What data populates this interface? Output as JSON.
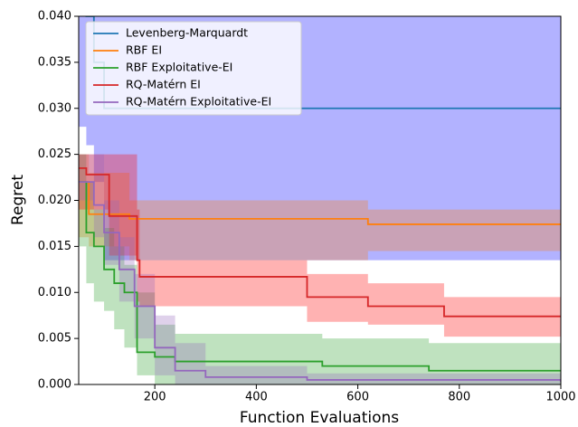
{
  "chart_data": {
    "type": "line",
    "drawstyle": "steps-post",
    "xlabel": "Function Evaluations",
    "ylabel": "Regret",
    "xlim": [
      50,
      1000
    ],
    "ylim": [
      0,
      0.04
    ],
    "xticks": [
      200,
      400,
      600,
      800,
      1000
    ],
    "yticks": [
      {
        "value": 0,
        "label": "0.000"
      },
      {
        "value": 0.005,
        "label": "0.005"
      },
      {
        "value": 0.01,
        "label": "0.010"
      },
      {
        "value": 0.015,
        "label": "0.015"
      },
      {
        "value": 0.02,
        "label": "0.020"
      },
      {
        "value": 0.025,
        "label": "0.025"
      },
      {
        "value": 0.03,
        "label": "0.030"
      },
      {
        "value": 0.035,
        "label": "0.035"
      },
      {
        "value": 0.04,
        "label": "0.040"
      }
    ],
    "legend": "upper left",
    "series": [
      {
        "name": "Levenberg-Marquardt",
        "color": "#1f77b4",
        "band_color": "#0000ff",
        "x": [
          50,
          65,
          80,
          100,
          1000
        ],
        "values": [
          0.045,
          0.04,
          0.035,
          0.03,
          0.03
        ],
        "lower": [
          0.028,
          0.026,
          0.022,
          0.0135,
          0.0135
        ],
        "upper": [
          0.06,
          0.06,
          0.06,
          0.06,
          0.06
        ]
      },
      {
        "name": "RBF EI",
        "color": "#ff7f0e",
        "band_color": "#ff7f0e",
        "x": [
          50,
          70,
          150,
          620,
          1000
        ],
        "values": [
          0.022,
          0.0185,
          0.018,
          0.0174,
          0.0174
        ],
        "lower": [
          0.016,
          0.015,
          0.0135,
          0.0145,
          0.0145
        ],
        "upper": [
          0.025,
          0.023,
          0.02,
          0.019,
          0.019
        ]
      },
      {
        "name": "RBF Exploitative-EI",
        "color": "#2ca02c",
        "band_color": "#2ca02c",
        "x": [
          50,
          65,
          80,
          100,
          120,
          140,
          165,
          200,
          240,
          530,
          740,
          1000
        ],
        "values": [
          0.022,
          0.0165,
          0.015,
          0.0125,
          0.011,
          0.01,
          0.0035,
          0.003,
          0.0025,
          0.002,
          0.0015,
          0.0015
        ],
        "lower": [
          0.015,
          0.011,
          0.009,
          0.008,
          0.006,
          0.004,
          0.001,
          0,
          0,
          0,
          0,
          0
        ],
        "upper": [
          0.025,
          0.022,
          0.019,
          0.017,
          0.015,
          0.013,
          0.01,
          0.0065,
          0.0055,
          0.005,
          0.0045,
          0.0042
        ]
      },
      {
        "name": "RQ-Matérn EI",
        "color": "#d62728",
        "band_color": "#ff0000",
        "x": [
          50,
          65,
          110,
          165,
          170,
          500,
          620,
          770,
          1000
        ],
        "values": [
          0.0235,
          0.0228,
          0.0183,
          0.0135,
          0.0117,
          0.0095,
          0.0085,
          0.0074,
          0.0074
        ],
        "lower": [
          0.019,
          0.019,
          0.014,
          0.009,
          0.0085,
          0.0068,
          0.0065,
          0.0052,
          0.0052
        ],
        "upper": [
          0.025,
          0.025,
          0.025,
          0.019,
          0.0135,
          0.012,
          0.011,
          0.0095,
          0.0095
        ]
      },
      {
        "name": "RQ-Matérn Exploitative-EI",
        "color": "#9467bd",
        "band_color": "#9467bd",
        "x": [
          50,
          80,
          100,
          130,
          160,
          200,
          240,
          300,
          500,
          1000
        ],
        "values": [
          0.022,
          0.0195,
          0.0165,
          0.0125,
          0.0085,
          0.004,
          0.0015,
          0.0008,
          0.0005,
          0.0003
        ],
        "lower": [
          0.02,
          0.016,
          0.013,
          0.009,
          0.005,
          0.001,
          0,
          0,
          0,
          0
        ],
        "upper": [
          0.025,
          0.025,
          0.02,
          0.016,
          0.012,
          0.0075,
          0.0045,
          0.002,
          0.0012,
          0.0008
        ]
      }
    ]
  }
}
